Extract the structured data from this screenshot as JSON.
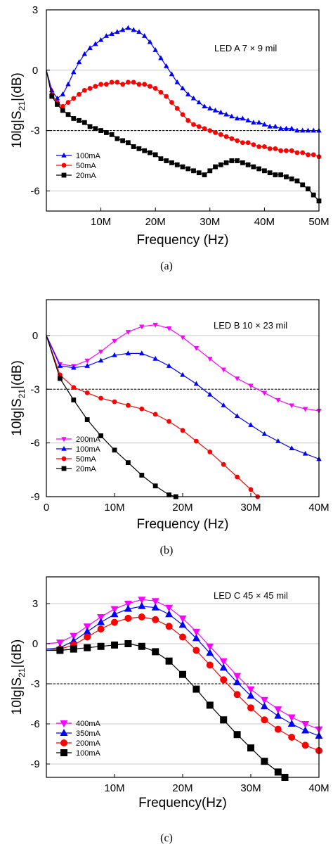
{
  "chart_data": [
    {
      "type": "line",
      "panel_label": "(a)",
      "title": "LED A  7 × 9 mil",
      "xlabel": "Frequency (Hz)",
      "ylabel": "10lg|S21|(dB)",
      "xlim": [
        0,
        50
      ],
      "ylim": [
        -7,
        3
      ],
      "x_ticks": [
        10,
        20,
        30,
        40,
        50
      ],
      "x_tick_labels": [
        "10M",
        "20M",
        "30M",
        "40M",
        "50M"
      ],
      "y_ticks": [
        3,
        0,
        -3,
        -6
      ],
      "y_tick_labels": [
        "3",
        "0",
        "-3",
        "-6"
      ],
      "grid": "horizontal",
      "reference_line": -3,
      "legend_position": "bottom-left",
      "series": [
        {
          "name": "100mA",
          "color": "#0000ff",
          "marker": "triangle-up",
          "x": [
            0,
            1,
            2,
            3,
            4,
            5,
            6,
            7,
            8,
            9,
            10,
            11,
            12,
            13,
            14,
            15,
            16,
            17,
            18,
            19,
            20,
            21,
            22,
            23,
            24,
            25,
            26,
            27,
            28,
            29,
            30,
            31,
            32,
            33,
            34,
            35,
            36,
            37,
            38,
            39,
            40,
            41,
            42,
            43,
            44,
            45,
            46,
            47,
            48,
            49,
            50
          ],
          "y": [
            0.0,
            -1.0,
            -1.4,
            -1.2,
            -0.7,
            -0.1,
            0.4,
            0.8,
            1.1,
            1.3,
            1.5,
            1.7,
            1.8,
            1.9,
            2.0,
            2.1,
            2.0,
            1.9,
            1.7,
            1.4,
            1.0,
            0.6,
            0.2,
            -0.2,
            -0.6,
            -0.9,
            -1.2,
            -1.4,
            -1.6,
            -1.8,
            -1.9,
            -2.0,
            -2.1,
            -2.2,
            -2.3,
            -2.4,
            -2.4,
            -2.5,
            -2.6,
            -2.6,
            -2.7,
            -2.8,
            -2.8,
            -2.9,
            -2.9,
            -2.9,
            -3.0,
            -3.0,
            -3.0,
            -3.0,
            -3.0
          ]
        },
        {
          "name": "50mA",
          "color": "#ff0000",
          "marker": "circle",
          "x": [
            0,
            1,
            2,
            3,
            4,
            5,
            6,
            7,
            8,
            9,
            10,
            11,
            12,
            13,
            14,
            15,
            16,
            17,
            18,
            19,
            20,
            21,
            22,
            23,
            24,
            25,
            26,
            27,
            28,
            29,
            30,
            31,
            32,
            33,
            34,
            35,
            36,
            37,
            38,
            39,
            40,
            41,
            42,
            43,
            44,
            45,
            46,
            47,
            48,
            49,
            50
          ],
          "y": [
            0.0,
            -1.2,
            -1.6,
            -1.8,
            -1.6,
            -1.4,
            -1.2,
            -1.0,
            -0.9,
            -0.8,
            -0.7,
            -0.7,
            -0.6,
            -0.6,
            -0.7,
            -0.6,
            -0.6,
            -0.7,
            -0.7,
            -0.8,
            -0.9,
            -1.1,
            -1.3,
            -1.6,
            -1.9,
            -2.2,
            -2.5,
            -2.7,
            -2.8,
            -2.9,
            -3.0,
            -3.1,
            -3.2,
            -3.3,
            -3.4,
            -3.5,
            -3.6,
            -3.6,
            -3.7,
            -3.8,
            -3.8,
            -3.9,
            -3.9,
            -4.0,
            -4.0,
            -4.0,
            -4.1,
            -4.1,
            -4.2,
            -4.2,
            -4.3
          ]
        },
        {
          "name": "20mA",
          "color": "#000000",
          "marker": "square",
          "x": [
            0,
            1,
            2,
            3,
            4,
            5,
            6,
            7,
            8,
            9,
            10,
            11,
            12,
            13,
            14,
            15,
            16,
            17,
            18,
            19,
            20,
            21,
            22,
            23,
            24,
            25,
            26,
            27,
            28,
            29,
            30,
            31,
            32,
            33,
            34,
            35,
            36,
            37,
            38,
            39,
            40,
            41,
            42,
            43,
            44,
            45,
            46,
            47,
            48,
            49,
            50
          ],
          "y": [
            0.0,
            -1.3,
            -1.7,
            -2.0,
            -2.2,
            -2.4,
            -2.5,
            -2.6,
            -2.8,
            -2.9,
            -3.0,
            -3.1,
            -3.2,
            -3.4,
            -3.5,
            -3.6,
            -3.8,
            -3.9,
            -4.0,
            -4.1,
            -4.2,
            -4.4,
            -4.5,
            -4.6,
            -4.7,
            -4.8,
            -4.9,
            -5.0,
            -5.1,
            -5.2,
            -5.0,
            -4.8,
            -4.7,
            -4.6,
            -4.5,
            -4.5,
            -4.6,
            -4.7,
            -4.8,
            -4.9,
            -5.0,
            -5.1,
            -5.2,
            -5.2,
            -5.3,
            -5.4,
            -5.5,
            -5.7,
            -5.9,
            -6.2,
            -6.5
          ]
        }
      ]
    },
    {
      "type": "line",
      "panel_label": "(b)",
      "title": "LED B   10 × 23 mil",
      "xlabel": "Frequency (Hz)",
      "ylabel": "10lg|S21|(dB)",
      "xlim": [
        0,
        40
      ],
      "ylim": [
        -9,
        2
      ],
      "x_ticks": [
        0,
        10,
        20,
        30,
        40
      ],
      "x_tick_labels": [
        "0",
        "10M",
        "20M",
        "30M",
        "40M"
      ],
      "y_ticks": [
        0,
        -3,
        -6,
        -9
      ],
      "y_tick_labels": [
        "0",
        "-3",
        "-6",
        "-9"
      ],
      "grid": "horizontal",
      "reference_line": -3,
      "legend_position": "bottom-left",
      "series": [
        {
          "name": "200mA",
          "color": "#ff00ff",
          "marker": "triangle-down",
          "x": [
            0,
            2,
            4,
            6,
            8,
            10,
            12,
            14,
            16,
            18,
            20,
            22,
            24,
            26,
            28,
            30,
            32,
            34,
            36,
            38,
            40
          ],
          "y": [
            0.0,
            -1.6,
            -1.7,
            -1.4,
            -0.9,
            -0.3,
            0.2,
            0.5,
            0.6,
            0.4,
            -0.1,
            -0.7,
            -1.3,
            -1.9,
            -2.4,
            -2.8,
            -3.2,
            -3.6,
            -3.9,
            -4.1,
            -4.2
          ]
        },
        {
          "name": "100mA",
          "color": "#0000ff",
          "marker": "triangle-up",
          "x": [
            0,
            2,
            4,
            6,
            8,
            10,
            12,
            14,
            16,
            18,
            20,
            22,
            24,
            26,
            28,
            30,
            32,
            34,
            36,
            38,
            40
          ],
          "y": [
            0.0,
            -1.7,
            -1.8,
            -1.7,
            -1.4,
            -1.1,
            -1.0,
            -1.0,
            -1.3,
            -1.7,
            -2.2,
            -2.7,
            -3.3,
            -3.9,
            -4.5,
            -5.0,
            -5.5,
            -5.9,
            -6.3,
            -6.6,
            -6.9
          ]
        },
        {
          "name": "50mA",
          "color": "#ff0000",
          "marker": "circle",
          "x": [
            0,
            2,
            4,
            6,
            8,
            10,
            12,
            14,
            16,
            18,
            20,
            22,
            24,
            26,
            28,
            30,
            31
          ],
          "y": [
            0.0,
            -2.2,
            -2.9,
            -3.2,
            -3.5,
            -3.7,
            -3.9,
            -4.1,
            -4.4,
            -4.8,
            -5.3,
            -5.9,
            -6.5,
            -7.2,
            -7.9,
            -8.6,
            -9.0
          ]
        },
        {
          "name": "20mA",
          "color": "#000000",
          "marker": "square",
          "x": [
            0,
            2,
            4,
            6,
            8,
            10,
            12,
            14,
            16,
            18,
            19
          ],
          "y": [
            0.0,
            -2.4,
            -3.6,
            -4.7,
            -5.6,
            -6.4,
            -7.1,
            -7.8,
            -8.4,
            -8.9,
            -9.0
          ]
        }
      ]
    },
    {
      "type": "line",
      "panel_label": "(c)",
      "title": "LED C   45 × 45 mil",
      "xlabel": "Frequency(Hz)",
      "ylabel": "10lg|S21|(dB)",
      "xlim": [
        0,
        40
      ],
      "ylim": [
        -10,
        5
      ],
      "x_ticks": [
        10,
        20,
        30,
        40
      ],
      "x_tick_labels": [
        "10M",
        "20M",
        "30M",
        "40M"
      ],
      "y_ticks": [
        3,
        0,
        -3,
        -6,
        -9
      ],
      "y_tick_labels": [
        "3",
        "0",
        "-3",
        "-6",
        "-9"
      ],
      "grid": "horizontal",
      "reference_line": -3,
      "legend_position": "bottom-left",
      "series": [
        {
          "name": "400mA",
          "color": "#ff00ff",
          "marker": "triangle-down",
          "x": [
            0,
            2,
            4,
            6,
            8,
            10,
            12,
            14,
            16,
            18,
            20,
            22,
            24,
            26,
            28,
            30,
            32,
            34,
            36,
            38,
            40
          ],
          "y": [
            0.0,
            0.1,
            0.6,
            1.3,
            2.0,
            2.6,
            3.0,
            3.3,
            3.2,
            2.7,
            1.9,
            0.9,
            -0.2,
            -1.3,
            -2.4,
            -3.4,
            -4.2,
            -4.9,
            -5.5,
            -6.0,
            -6.4
          ]
        },
        {
          "name": "350mA",
          "color": "#0000ff",
          "marker": "triangle-up",
          "x": [
            0,
            2,
            4,
            6,
            8,
            10,
            12,
            14,
            16,
            18,
            20,
            22,
            24,
            26,
            28,
            30,
            32,
            34,
            36,
            38,
            40
          ],
          "y": [
            -0.4,
            -0.3,
            0.2,
            0.9,
            1.6,
            2.2,
            2.6,
            2.8,
            2.7,
            2.2,
            1.4,
            0.4,
            -0.7,
            -1.8,
            -2.9,
            -3.9,
            -4.7,
            -5.4,
            -6.0,
            -6.5,
            -6.9
          ]
        },
        {
          "name": "200mA",
          "color": "#ff0000",
          "marker": "circle",
          "x": [
            0,
            2,
            4,
            6,
            8,
            10,
            12,
            14,
            16,
            18,
            20,
            22,
            24,
            26,
            28,
            30,
            32,
            34,
            36,
            38,
            40
          ],
          "y": [
            -0.5,
            -0.4,
            -0.1,
            0.5,
            1.1,
            1.6,
            1.9,
            2.0,
            1.8,
            1.3,
            0.5,
            -0.5,
            -1.6,
            -2.7,
            -3.8,
            -4.8,
            -5.7,
            -6.4,
            -7.0,
            -7.6,
            -8.0
          ]
        },
        {
          "name": "100mA",
          "color": "#000000",
          "marker": "square",
          "x": [
            0,
            2,
            4,
            6,
            8,
            10,
            12,
            14,
            16,
            18,
            20,
            22,
            24,
            26,
            28,
            30,
            32,
            34,
            35
          ],
          "y": [
            -0.5,
            -0.5,
            -0.4,
            -0.3,
            -0.2,
            -0.1,
            0.0,
            -0.2,
            -0.6,
            -1.3,
            -2.3,
            -3.4,
            -4.6,
            -5.7,
            -6.8,
            -7.8,
            -8.8,
            -9.6,
            -10.0
          ]
        }
      ]
    }
  ]
}
